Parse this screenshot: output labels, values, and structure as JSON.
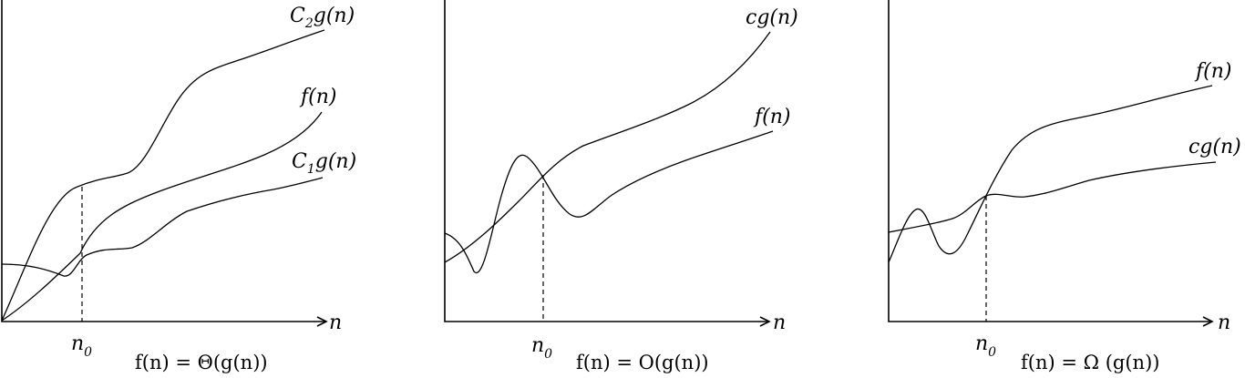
{
  "panels": [
    {
      "labels": {
        "upper": {
          "main": "C",
          "sub": "2",
          "rest": "g(n)"
        },
        "f": "f(n)",
        "lower": {
          "main": "C",
          "sub": "1",
          "rest": "g(n)"
        }
      },
      "axis_label": "n",
      "threshold": {
        "main": "n",
        "sub": "0"
      },
      "caption": "f(n) = Θ(g(n))"
    },
    {
      "labels": {
        "upper": "cg(n)",
        "f": "f(n)"
      },
      "axis_label": "n",
      "threshold": {
        "main": "n",
        "sub": "0"
      },
      "caption": "f(n) = O(g(n))"
    },
    {
      "labels": {
        "f": "f(n)",
        "lower": "cg(n)"
      },
      "axis_label": "n",
      "threshold": {
        "main": "n",
        "sub": "0"
      },
      "caption": "f(n) = Ω (g(n))"
    }
  ]
}
